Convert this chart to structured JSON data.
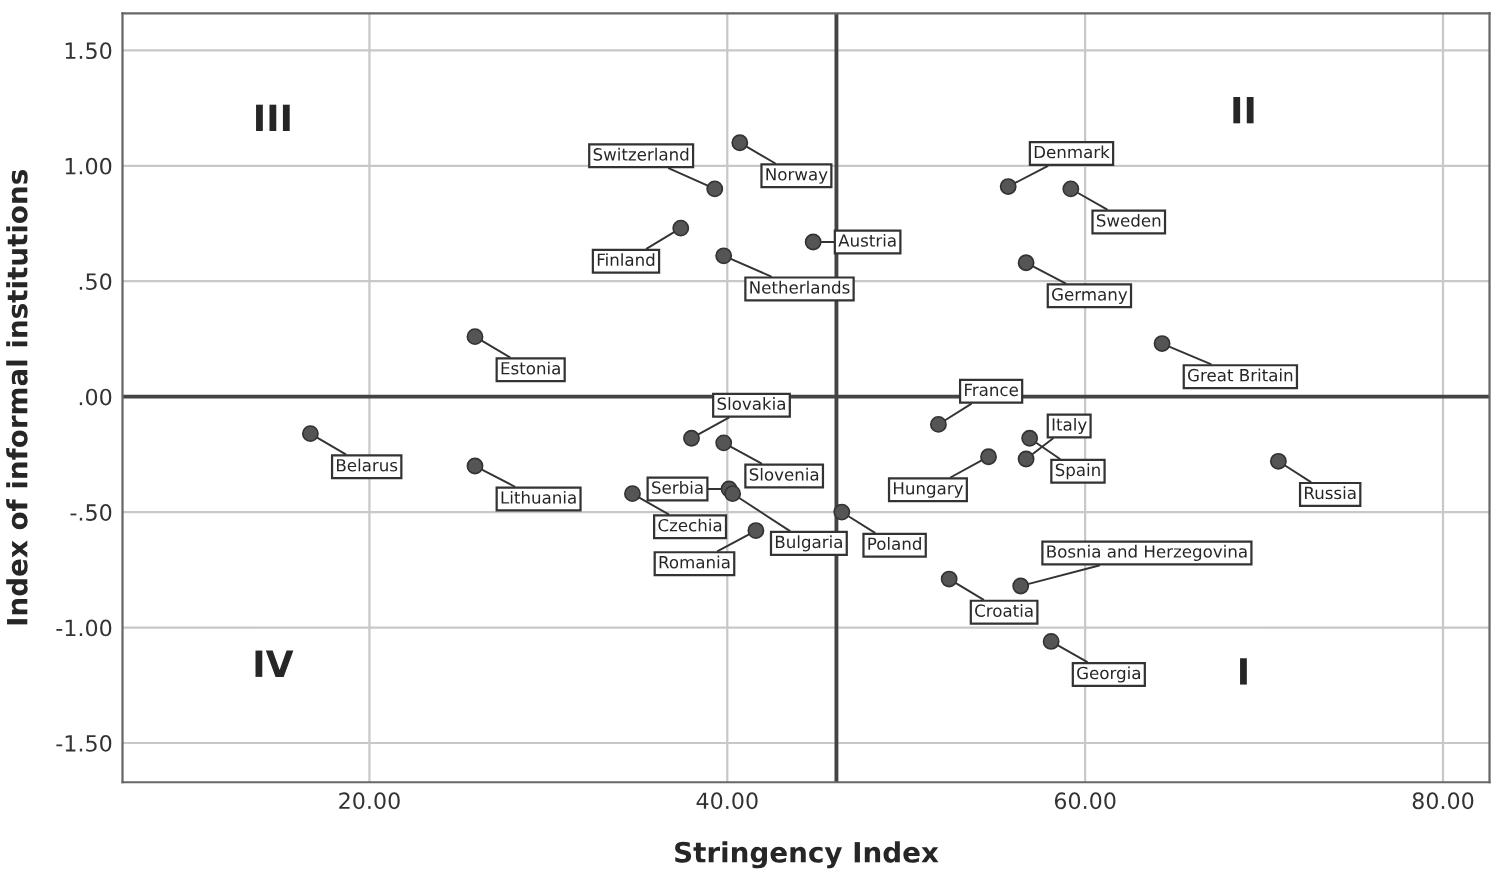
{
  "chart_data": {
    "type": "scatter",
    "xlabel": "Stringency Index",
    "ylabel": "Index of informal institutions",
    "x": [
      40.7,
      39.3,
      37.4,
      39.8,
      25.9,
      59.2,
      55.7,
      44.8,
      56.7,
      64.3,
      16.7,
      25.9,
      38.0,
      39.8,
      34.7,
      40.1,
      40.3,
      41.6,
      51.8,
      56.9,
      54.6,
      56.7,
      70.8,
      46.4,
      52.4,
      56.4,
      58.1
    ],
    "series": [
      {
        "color": "#555555",
        "values": [
          1.1,
          0.9,
          0.73,
          0.61,
          0.26,
          0.9,
          0.91,
          0.67,
          0.58,
          0.23,
          -0.16,
          -0.3,
          -0.18,
          -0.2,
          -0.42,
          -0.4,
          -0.42,
          -0.58,
          -0.12,
          -0.18,
          -0.26,
          -0.27,
          -0.28,
          -0.5,
          -0.79,
          -0.82,
          -1.06
        ]
      }
    ],
    "marker": "circle",
    "xlim": [
      6.2,
      82.6
    ],
    "ylim": [
      -1.67,
      1.66
    ],
    "xticks": [
      {
        "value": 20,
        "label": "20.00"
      },
      {
        "value": 40,
        "label": "40.00"
      },
      {
        "value": 60,
        "label": "60.00"
      },
      {
        "value": 80,
        "label": "80.00"
      }
    ],
    "yticks": [
      {
        "value": -1.5,
        "label": "-1.50"
      },
      {
        "value": -1.0,
        "label": "-1.00"
      },
      {
        "value": -0.5,
        "label": "-.50"
      },
      {
        "value": 0,
        "label": ".00"
      },
      {
        "value": 0.5,
        "label": ".50"
      },
      {
        "value": 1.0,
        "label": "1.00"
      },
      {
        "value": 1.5,
        "label": "1.50"
      }
    ],
    "grid": true,
    "ref_lines": [
      {
        "axis": "x",
        "value": 46.1,
        "color": "#444444"
      },
      {
        "axis": "y",
        "value": 0,
        "color": "#444444"
      }
    ],
    "annotations": [
      "III",
      "II",
      "IV",
      "I",
      {
        "text": "Norway",
        "x": 40.7,
        "y": 1.1
      },
      {
        "text": "Switzerland",
        "x": 39.3,
        "y": 0.9
      },
      {
        "text": "Finland",
        "x": 37.4,
        "y": 0.73
      },
      {
        "text": "Netherlands",
        "x": 39.8,
        "y": 0.61
      },
      {
        "text": "Estonia",
        "x": 25.9,
        "y": 0.26
      },
      {
        "text": "Sweden",
        "x": 59.2,
        "y": 0.9
      },
      {
        "text": "Denmark",
        "x": 55.7,
        "y": 0.91
      },
      {
        "text": "Austria",
        "x": 44.8,
        "y": 0.67
      },
      {
        "text": "Germany",
        "x": 56.7,
        "y": 0.58
      },
      {
        "text": "Great Britain",
        "x": 64.3,
        "y": 0.23
      },
      {
        "text": "Belarus",
        "x": 16.7,
        "y": -0.16
      },
      {
        "text": "Lithuania",
        "x": 25.9,
        "y": -0.3
      },
      {
        "text": "Slovakia",
        "x": 38.0,
        "y": -0.18
      },
      {
        "text": "Slovenia",
        "x": 39.8,
        "y": -0.2
      },
      {
        "text": "Czechia",
        "x": 34.7,
        "y": -0.42
      },
      {
        "text": "Serbia",
        "x": 40.1,
        "y": -0.4
      },
      {
        "text": "Bulgaria",
        "x": 40.3,
        "y": -0.42
      },
      {
        "text": "Romania",
        "x": 41.6,
        "y": -0.58
      },
      {
        "text": "France",
        "x": 51.8,
        "y": -0.12
      },
      {
        "text": "Spain",
        "x": 56.9,
        "y": -0.18
      },
      {
        "text": "Hungary",
        "x": 54.6,
        "y": -0.26
      },
      {
        "text": "Italy",
        "x": 56.7,
        "y": -0.27
      },
      {
        "text": "Russia",
        "x": 70.8,
        "y": -0.28
      },
      {
        "text": "Poland",
        "x": 46.4,
        "y": -0.5
      },
      {
        "text": "Croatia",
        "x": 52.4,
        "y": -0.79
      },
      {
        "text": "Bosnia and Herzegovina",
        "x": 56.4,
        "y": -0.82
      },
      {
        "text": "Georgia",
        "x": 58.1,
        "y": -1.06
      }
    ]
  }
}
